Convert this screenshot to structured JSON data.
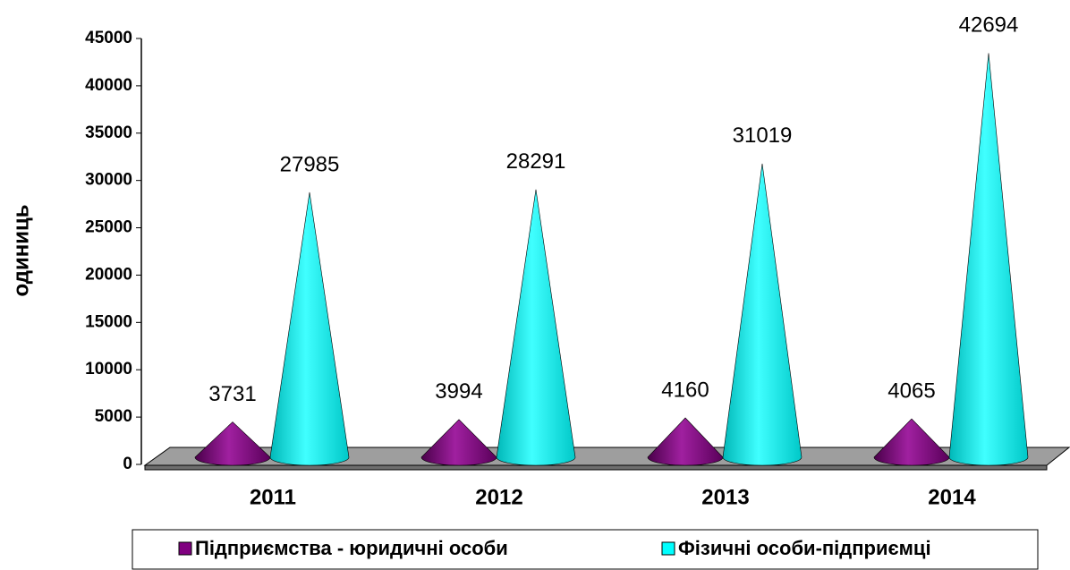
{
  "chart_data": {
    "type": "cone3d",
    "y_label": "одиниць",
    "categories": [
      "2011",
      "2012",
      "2013",
      "2014"
    ],
    "series": [
      {
        "name": "Підприємства - юридичні особи",
        "color": "#800080",
        "values": [
          3731,
          3994,
          4160,
          4065
        ]
      },
      {
        "name": "Фізичні особи-підприємці",
        "color": "#00ffff",
        "values": [
          27985,
          28291,
          31019,
          42694
        ]
      }
    ],
    "ylim": [
      0,
      45000
    ],
    "yticks": [
      0,
      5000,
      10000,
      15000,
      20000,
      25000,
      30000,
      35000,
      40000,
      45000
    ],
    "legend": "bottom"
  }
}
